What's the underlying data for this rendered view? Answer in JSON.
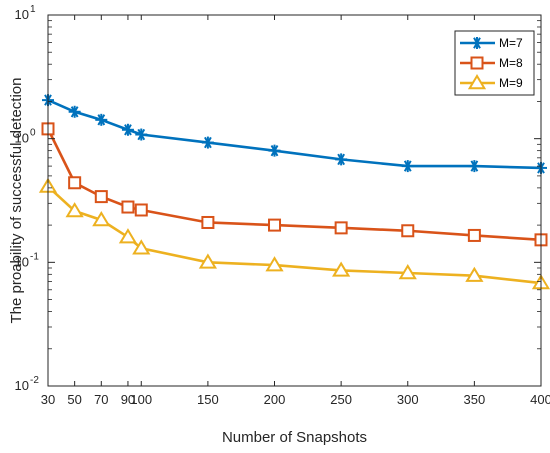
{
  "chart_data": {
    "type": "line",
    "title": "",
    "xlabel": "Number of Snapshots",
    "ylabel": "The proability of successful detection",
    "x": [
      30,
      50,
      70,
      90,
      100,
      150,
      200,
      250,
      300,
      350,
      400
    ],
    "x_tick_values": [
      30,
      50,
      70,
      90,
      100,
      150,
      200,
      250,
      300,
      350,
      400
    ],
    "x_tick_labels": [
      "30",
      "50",
      "70",
      "90",
      "100",
      "150",
      "200",
      "250",
      "300",
      "350",
      "400"
    ],
    "xlim": [
      30,
      400
    ],
    "yscale": "log",
    "ylim": [
      0.01,
      10
    ],
    "y_ticks": [
      {
        "base": "10",
        "exp": "-2",
        "value": 0.01
      },
      {
        "base": "10",
        "exp": "-1",
        "value": 0.1
      },
      {
        "base": "10",
        "exp": "0",
        "value": 1
      },
      {
        "base": "10",
        "exp": "1",
        "value": 10
      }
    ],
    "legend_position": "top-right",
    "series": [
      {
        "name": "M=7",
        "color": "#0072BD",
        "marker": "asterisk",
        "values": [
          2.05,
          1.65,
          1.42,
          1.18,
          1.08,
          0.93,
          0.8,
          0.68,
          0.6,
          0.6,
          0.58
        ]
      },
      {
        "name": "M=8",
        "color": "#D95319",
        "marker": "square",
        "values": [
          1.2,
          0.44,
          0.34,
          0.28,
          0.265,
          0.21,
          0.2,
          0.19,
          0.18,
          0.165,
          0.152
        ]
      },
      {
        "name": "M=9",
        "color": "#EDB120",
        "marker": "triangle",
        "values": [
          0.41,
          0.26,
          0.22,
          0.16,
          0.13,
          0.1,
          0.095,
          0.086,
          0.082,
          0.078,
          0.068
        ]
      }
    ]
  }
}
